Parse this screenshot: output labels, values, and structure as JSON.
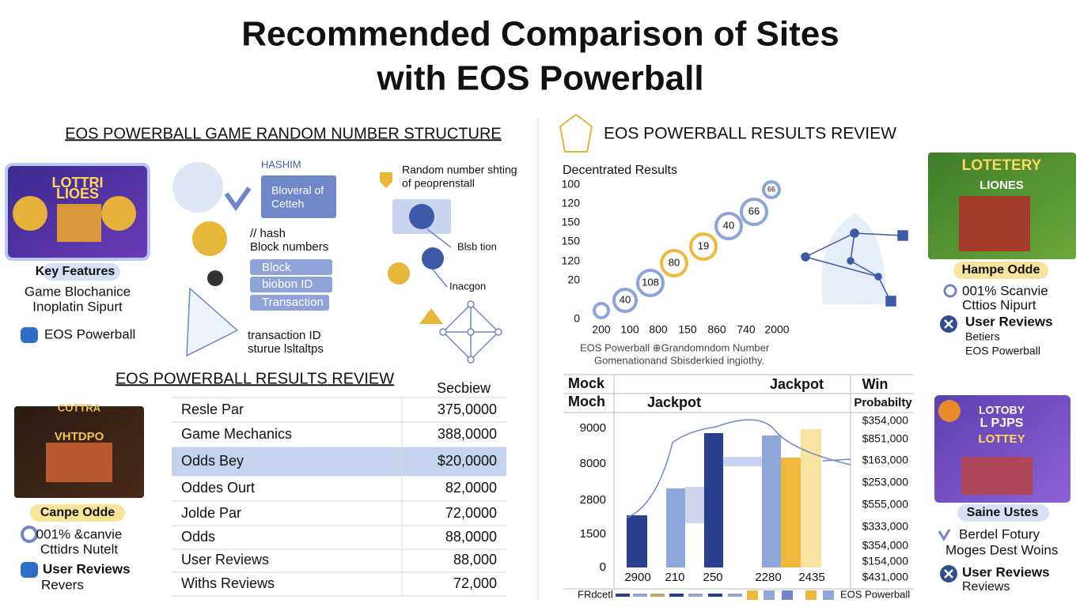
{
  "title": [
    "Recommended Comparison of Sites",
    "with EOS Powerball"
  ],
  "structure": {
    "heading": "EOS POWERBALL GAME RANDOM NUMBER STRUCTURE",
    "card": {
      "image_text": [
        "LOTTRI",
        "LIOES"
      ],
      "label": "Key Features",
      "lines": [
        "Game Blochanice",
        "Inoplatin Sipurt"
      ],
      "link": "EOS Powerball"
    },
    "hash": {
      "title": "HASHIM",
      "box": [
        "Bloveral of",
        "Cetteh"
      ],
      "caption": [
        "// hash",
        "Block numbers"
      ],
      "pills": [
        "Block",
        "biobon ID",
        "Transaction"
      ],
      "footer": [
        "transaction ID",
        "sturue lsltaltps"
      ]
    },
    "random": {
      "title": [
        "Random number shting",
        "of peoprenstall"
      ],
      "labels": [
        "Blsb tion",
        "Inacgon"
      ]
    }
  },
  "results_table": {
    "heading": "EOS POWERBALL RESULTS REVIEW",
    "column": "Secbiew",
    "rows": [
      [
        "Resle Par",
        "375,0000"
      ],
      [
        "Game Mechanics",
        "388,0000"
      ],
      [
        "Odds Bey",
        "$20,0000"
      ],
      [
        "Oddes Ourt",
        "82,0000"
      ],
      [
        "Jolde Par",
        "72,0000"
      ],
      [
        "Odds",
        "88,0000"
      ],
      [
        "User Reviews",
        "88,000"
      ],
      [
        "Withs Reviews",
        "72,000"
      ]
    ],
    "card": {
      "image_text": [
        "COTTRA",
        "VHTDPO"
      ],
      "label": "Canpe Odde",
      "lines": [
        "001% &canvie",
        "Cttidrs Nutelt"
      ],
      "link": "User Reviews",
      "link_sub": "Revers"
    }
  },
  "results_review": {
    "heading": "EOS POWERBALL RESULTS REVIEW",
    "subtitle": "Decentrated Results",
    "y_labels": [
      "100",
      "120",
      "150",
      "150",
      "120",
      "20",
      "0"
    ],
    "x_labels": [
      "200",
      "100",
      "800",
      "150",
      "860",
      "740",
      "2000"
    ],
    "points": [
      "40",
      "108",
      "80",
      "19",
      "40",
      "66",
      "66"
    ],
    "caption": [
      "EOS Powerball  ⊕Grandomndom Number",
      "Gomenationand Sbisderkied ingiothy."
    ],
    "card": {
      "image_text": [
        "LOTETERY",
        "LIONES"
      ],
      "label": "Hampe Odde",
      "lines": [
        "001% Scanvie",
        "Cttios Nipurt"
      ],
      "link": "User Reviews",
      "link_sub": [
        "Betiers",
        "EOS Powerball"
      ]
    }
  },
  "jackpot": {
    "headers": {
      "first": [
        "Mock",
        "Moch"
      ],
      "top": "Jackpot",
      "sub": "Jackpot",
      "last": [
        "Win",
        "Probabilty"
      ]
    },
    "y_labels": [
      "9000",
      "8000",
      "2800",
      "1500",
      "0"
    ],
    "x_labels": [
      "2900",
      "210",
      "250",
      "2280",
      "2435"
    ],
    "win_values": [
      "$354,000",
      "$851,000",
      "$163,000",
      "$253,000",
      "$555,000",
      "$333,000",
      "$354,000",
      "$154,000",
      "$431,000"
    ],
    "legend": [
      "FRdcetl",
      "EOS Powerball"
    ],
    "card": {
      "image_text": [
        "LOTOBY",
        "L PJPS",
        "LOTTEY"
      ],
      "label": "Saine Ustes",
      "lines": [
        "Berdel Fotury",
        "Moges Dest Woins"
      ],
      "link": "User Reviews",
      "link_sub": "Reviews"
    }
  }
}
